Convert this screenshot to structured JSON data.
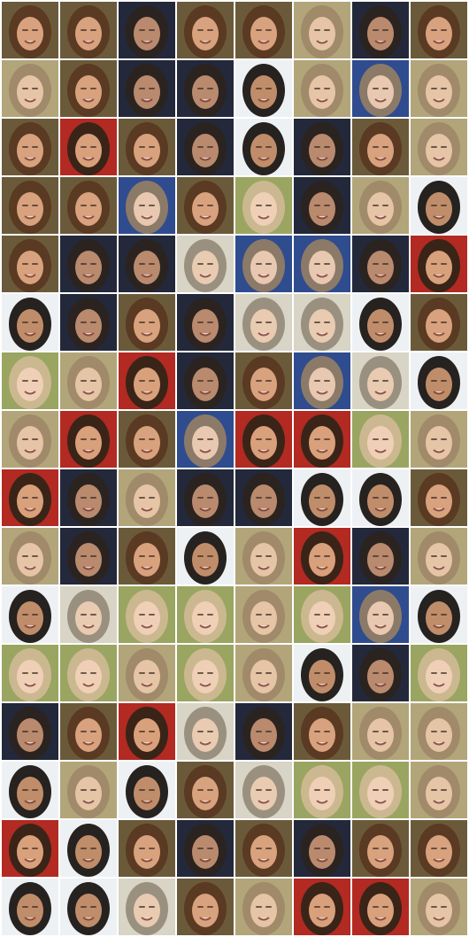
{
  "grid": {
    "rows": 16,
    "cols": 8,
    "border_color": "#ffffff"
  },
  "palettes": {
    "A": {
      "bg": "#6b5a3a",
      "hair": "#5a3a22",
      "skin": "#d8a27e"
    },
    "B": {
      "bg": "#23283a",
      "hair": "#2b2320",
      "skin": "#b98a6e"
    },
    "C": {
      "bg": "#b2a57a",
      "hair": "#a08a6a",
      "skin": "#e6c4a6"
    },
    "D": {
      "bg": "#eef1f4",
      "hair": "#262220",
      "skin": "#c08d6a"
    },
    "E": {
      "bg": "#b22a22",
      "hair": "#3a2418",
      "skin": "#d9a07c"
    },
    "F": {
      "bg": "#9aa561",
      "hair": "#cbb890",
      "skin": "#efd0b6"
    },
    "G": {
      "bg": "#2f4c8e",
      "hair": "#8c7a68",
      "skin": "#e8c8b0"
    },
    "H": {
      "bg": "#d8d4c6",
      "hair": "#9a9080",
      "skin": "#e9cbb2"
    },
    "I": {
      "bg": "#3c3c3c",
      "hair": "#2a2220",
      "skin": "#a77b5e"
    }
  },
  "tiles": [
    [
      "A",
      "A",
      "B",
      "A",
      "A",
      "C",
      "B",
      "A"
    ],
    [
      "C",
      "A",
      "B",
      "B",
      "D",
      "C",
      "G",
      "C"
    ],
    [
      "A",
      "E",
      "A",
      "B",
      "D",
      "B",
      "A",
      "C"
    ],
    [
      "A",
      "A",
      "G",
      "A",
      "F",
      "B",
      "C",
      "D"
    ],
    [
      "A",
      "B",
      "B",
      "H",
      "G",
      "G",
      "B",
      "E"
    ],
    [
      "D",
      "B",
      "A",
      "B",
      "H",
      "H",
      "D",
      "A"
    ],
    [
      "F",
      "C",
      "E",
      "B",
      "A",
      "G",
      "H",
      "D"
    ],
    [
      "C",
      "E",
      "A",
      "G",
      "E",
      "E",
      "F",
      "C"
    ],
    [
      "E",
      "B",
      "C",
      "B",
      "B",
      "D",
      "D",
      "A"
    ],
    [
      "C",
      "B",
      "A",
      "D",
      "C",
      "E",
      "B",
      "C"
    ],
    [
      "D",
      "H",
      "F",
      "F",
      "C",
      "F",
      "G",
      "D"
    ],
    [
      "F",
      "F",
      "C",
      "F",
      "C",
      "D",
      "B",
      "F"
    ],
    [
      "B",
      "A",
      "E",
      "H",
      "B",
      "A",
      "C",
      "C"
    ],
    [
      "D",
      "C",
      "D",
      "A",
      "H",
      "F",
      "F",
      "C"
    ],
    [
      "E",
      "D",
      "A",
      "B",
      "A",
      "B",
      "A",
      "A"
    ],
    [
      "D",
      "D",
      "H",
      "A",
      "C",
      "E",
      "E",
      "C"
    ]
  ]
}
